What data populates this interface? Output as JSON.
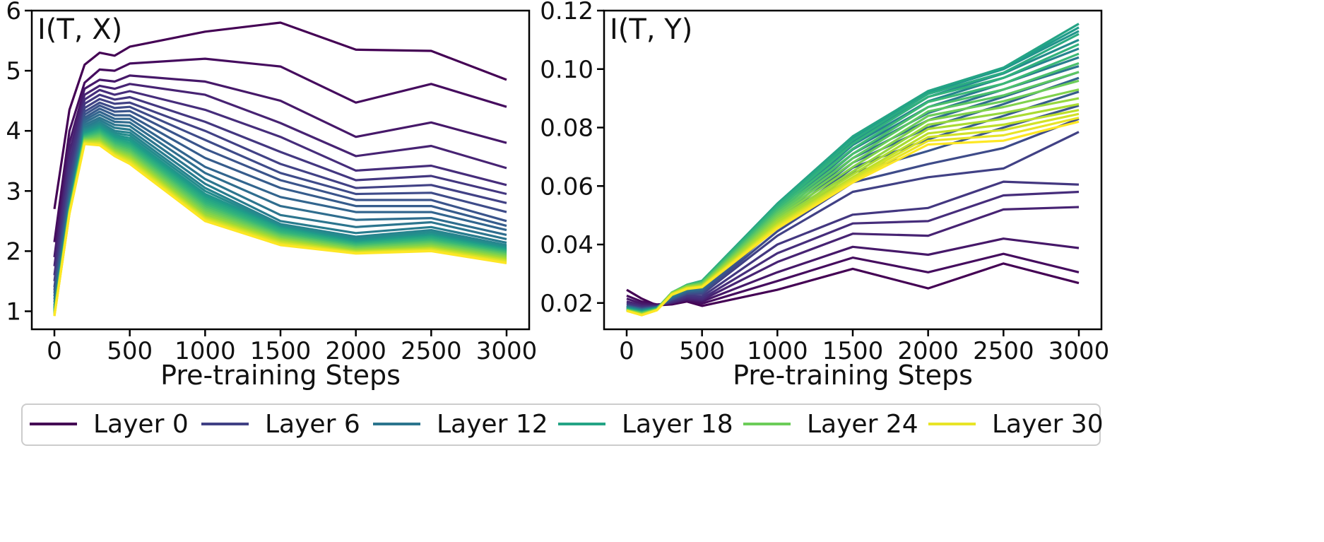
{
  "chart_data": [
    {
      "type": "line",
      "title": "I(T, X)",
      "xlabel": "Pre-training Steps",
      "ylabel": "",
      "x": [
        0,
        100,
        200,
        300,
        400,
        500,
        1000,
        1500,
        2000,
        2500,
        3000
      ],
      "xticks": [
        0,
        500,
        1000,
        1500,
        2000,
        2500,
        3000
      ],
      "xtick_labels": [
        "0",
        "500",
        "1000",
        "1500",
        "2000",
        "2500",
        "3000"
      ],
      "xlim": [
        -150,
        3150
      ],
      "ylim": [
        0.7,
        6.0
      ],
      "yticks": [
        1,
        2,
        3,
        4,
        5,
        6
      ],
      "ytick_labels": [
        "1",
        "2",
        "3",
        "4",
        "5",
        "6"
      ],
      "grid": false,
      "legend": "bottom",
      "colormap": "viridis",
      "key_series": [
        {
          "layer": 0,
          "values": [
            2.7,
            4.35,
            5.1,
            5.3,
            5.25,
            5.4,
            5.65,
            5.8,
            5.35,
            5.33,
            4.85
          ]
        },
        {
          "layer": 1,
          "values": [
            2.15,
            4.0,
            4.8,
            5.02,
            5.0,
            5.12,
            5.2,
            5.07,
            4.47,
            4.78,
            4.4
          ]
        },
        {
          "layer": 2,
          "values": [
            1.9,
            3.8,
            4.7,
            4.85,
            4.82,
            4.92,
            4.82,
            4.5,
            3.9,
            4.14,
            3.8
          ]
        },
        {
          "layer": 3,
          "values": [
            1.75,
            3.65,
            4.6,
            4.75,
            4.7,
            4.78,
            4.6,
            4.13,
            3.58,
            3.75,
            3.38
          ]
        },
        {
          "layer": 4,
          "values": [
            1.6,
            3.5,
            4.52,
            4.68,
            4.6,
            4.66,
            4.35,
            3.9,
            3.34,
            3.42,
            3.1
          ]
        },
        {
          "layer": 5,
          "values": [
            1.5,
            3.35,
            4.45,
            4.6,
            4.52,
            4.56,
            4.15,
            3.65,
            3.18,
            3.25,
            2.95
          ]
        },
        {
          "layer": 6,
          "values": [
            1.4,
            3.2,
            4.38,
            4.53,
            4.45,
            4.47,
            4.0,
            3.45,
            3.05,
            3.1,
            2.8
          ]
        },
        {
          "layer": 7,
          "values": [
            1.35,
            3.1,
            4.32,
            4.47,
            4.38,
            4.4,
            3.85,
            3.3,
            2.95,
            2.97,
            2.65
          ]
        },
        {
          "layer": 8,
          "values": [
            1.3,
            3.0,
            4.27,
            4.42,
            4.32,
            4.33,
            3.7,
            3.18,
            2.85,
            2.85,
            2.5
          ]
        },
        {
          "layer": 9,
          "values": [
            1.25,
            2.95,
            4.22,
            4.37,
            4.26,
            4.26,
            3.55,
            3.05,
            2.75,
            2.75,
            2.42
          ]
        },
        {
          "layer": 10,
          "values": [
            1.2,
            2.9,
            4.18,
            4.32,
            4.2,
            4.2,
            3.4,
            2.9,
            2.65,
            2.65,
            2.35
          ]
        },
        {
          "layer": 11,
          "values": [
            1.15,
            2.85,
            4.14,
            4.27,
            4.15,
            4.14,
            3.3,
            2.75,
            2.52,
            2.55,
            2.27
          ]
        },
        {
          "layer": 12,
          "values": [
            1.1,
            2.8,
            4.1,
            4.22,
            4.1,
            4.08,
            3.2,
            2.6,
            2.4,
            2.48,
            2.2
          ]
        },
        {
          "layer": 13,
          "values": [
            1.07,
            2.77,
            4.06,
            4.18,
            4.05,
            4.02,
            3.12,
            2.5,
            2.3,
            2.4,
            2.14
          ]
        },
        {
          "layer": 14,
          "values": [
            1.05,
            2.75,
            4.03,
            4.14,
            4.0,
            3.97,
            3.05,
            2.45,
            2.24,
            2.35,
            2.1
          ]
        },
        {
          "layer": 16,
          "values": [
            1.02,
            2.72,
            3.98,
            4.08,
            3.93,
            3.88,
            2.95,
            2.4,
            2.18,
            2.28,
            2.05
          ]
        },
        {
          "layer": 18,
          "values": [
            1.0,
            2.7,
            3.94,
            4.03,
            3.87,
            3.8,
            2.88,
            2.37,
            2.14,
            2.24,
            2.02
          ]
        },
        {
          "layer": 21,
          "values": [
            0.98,
            2.68,
            3.9,
            3.97,
            3.8,
            3.72,
            2.78,
            2.3,
            2.1,
            2.18,
            1.98
          ]
        },
        {
          "layer": 24,
          "values": [
            0.96,
            2.66,
            3.86,
            3.9,
            3.72,
            3.63,
            2.68,
            2.24,
            2.05,
            2.12,
            1.93
          ]
        },
        {
          "layer": 27,
          "values": [
            0.94,
            2.64,
            3.83,
            3.83,
            3.65,
            3.55,
            2.58,
            2.18,
            2.0,
            2.06,
            1.87
          ]
        },
        {
          "layer": 31,
          "values": [
            0.92,
            2.62,
            3.78,
            3.76,
            3.58,
            3.45,
            2.5,
            2.1,
            1.96,
            2.0,
            1.8
          ]
        }
      ]
    },
    {
      "type": "line",
      "title": "I(T, Y)",
      "xlabel": "Pre-training Steps",
      "ylabel": "",
      "x": [
        0,
        100,
        200,
        300,
        400,
        500,
        1000,
        1500,
        2000,
        2500,
        3000
      ],
      "xticks": [
        0,
        500,
        1000,
        1500,
        2000,
        2500,
        3000
      ],
      "xtick_labels": [
        "0",
        "500",
        "1000",
        "1500",
        "2000",
        "2500",
        "3000"
      ],
      "xlim": [
        -150,
        3150
      ],
      "ylim": [
        0.011,
        0.12
      ],
      "yticks": [
        0.02,
        0.04,
        0.06,
        0.08,
        0.1,
        0.12
      ],
      "ytick_labels": [
        "0.02",
        "0.04",
        "0.06",
        "0.08",
        "0.10",
        "0.12"
      ],
      "grid": false,
      "legend": "bottom",
      "colormap": "viridis",
      "key_series": [
        {
          "layer": 0,
          "values": [
            0.0245,
            0.0215,
            0.0192,
            0.0195,
            0.0205,
            0.019,
            0.0245,
            0.0317,
            0.025,
            0.0335,
            0.0268
          ]
        },
        {
          "layer": 1,
          "values": [
            0.0225,
            0.0205,
            0.0195,
            0.0198,
            0.0208,
            0.0198,
            0.0275,
            0.0355,
            0.0305,
            0.0368,
            0.0305
          ]
        },
        {
          "layer": 2,
          "values": [
            0.0215,
            0.0198,
            0.0192,
            0.02,
            0.0212,
            0.0205,
            0.0305,
            0.0392,
            0.0365,
            0.042,
            0.0388
          ]
        },
        {
          "layer": 3,
          "values": [
            0.0205,
            0.0192,
            0.019,
            0.0202,
            0.0215,
            0.021,
            0.034,
            0.0437,
            0.043,
            0.052,
            0.0528
          ]
        },
        {
          "layer": 4,
          "values": [
            0.02,
            0.0188,
            0.0189,
            0.0204,
            0.022,
            0.0215,
            0.037,
            0.0472,
            0.048,
            0.0568,
            0.058
          ]
        },
        {
          "layer": 5,
          "values": [
            0.0196,
            0.0185,
            0.0188,
            0.0207,
            0.0225,
            0.0222,
            0.04,
            0.0502,
            0.0525,
            0.0615,
            0.0605
          ]
        },
        {
          "layer": 6,
          "values": [
            0.0192,
            0.0182,
            0.0187,
            0.021,
            0.023,
            0.023,
            0.043,
            0.058,
            0.063,
            0.066,
            0.0785
          ]
        },
        {
          "layer": 8,
          "values": [
            0.019,
            0.018,
            0.0186,
            0.0214,
            0.0235,
            0.0238,
            0.046,
            0.0645,
            0.072,
            0.08,
            0.0875
          ]
        },
        {
          "layer": 10,
          "values": [
            0.0188,
            0.0178,
            0.0185,
            0.0218,
            0.024,
            0.0245,
            0.048,
            0.068,
            0.08,
            0.088,
            0.097
          ]
        },
        {
          "layer": 12,
          "values": [
            0.0186,
            0.0176,
            0.0184,
            0.0222,
            0.0245,
            0.0252,
            0.05,
            0.071,
            0.085,
            0.093,
            0.101
          ]
        },
        {
          "layer": 14,
          "values": [
            0.0184,
            0.0174,
            0.0183,
            0.0226,
            0.025,
            0.026,
            0.052,
            0.074,
            0.089,
            0.097,
            0.107
          ]
        },
        {
          "layer": 16,
          "values": [
            0.0182,
            0.0172,
            0.0182,
            0.023,
            0.0258,
            0.027,
            0.0535,
            0.0765,
            0.092,
            0.1,
            0.113
          ]
        },
        {
          "layer": 18,
          "values": [
            0.018,
            0.017,
            0.0181,
            0.0234,
            0.0262,
            0.0276,
            0.054,
            0.077,
            0.0925,
            0.1005,
            0.1155
          ]
        },
        {
          "layer": 20,
          "values": [
            0.0178,
            0.0168,
            0.018,
            0.0236,
            0.0262,
            0.0275,
            0.053,
            0.0745,
            0.0905,
            0.097,
            0.1085
          ]
        },
        {
          "layer": 22,
          "values": [
            0.0177,
            0.0166,
            0.0179,
            0.0236,
            0.026,
            0.027,
            0.0515,
            0.071,
            0.087,
            0.093,
            0.102
          ]
        },
        {
          "layer": 24,
          "values": [
            0.0176,
            0.0164,
            0.0178,
            0.0235,
            0.0258,
            0.0266,
            0.05,
            0.068,
            0.084,
            0.089,
            0.096
          ]
        },
        {
          "layer": 26,
          "values": [
            0.0175,
            0.0162,
            0.0177,
            0.0233,
            0.0255,
            0.0262,
            0.0485,
            0.065,
            0.081,
            0.085,
            0.09
          ]
        },
        {
          "layer": 28,
          "values": [
            0.0174,
            0.016,
            0.0176,
            0.0231,
            0.0252,
            0.0258,
            0.047,
            0.063,
            0.078,
            0.081,
            0.086
          ]
        },
        {
          "layer": 31,
          "values": [
            0.0173,
            0.0158,
            0.0175,
            0.0228,
            0.0248,
            0.0254,
            0.0455,
            0.0612,
            0.0742,
            0.0755,
            0.082
          ]
        }
      ]
    }
  ],
  "layer_count": 32,
  "legend": {
    "items": [
      {
        "label": "Layer 0",
        "layer": 0,
        "color": "#440154"
      },
      {
        "label": "Layer 6",
        "layer": 6,
        "color": "#3d4e8a"
      },
      {
        "label": "Layer 12",
        "layer": 12,
        "color": "#2a788e"
      },
      {
        "label": "Layer 18",
        "layer": 18,
        "color": "#23a983"
      },
      {
        "label": "Layer 24",
        "layer": 24,
        "color": "#7fd34e"
      },
      {
        "label": "Layer 30",
        "layer": 30,
        "color": "#f5e61f"
      }
    ]
  }
}
